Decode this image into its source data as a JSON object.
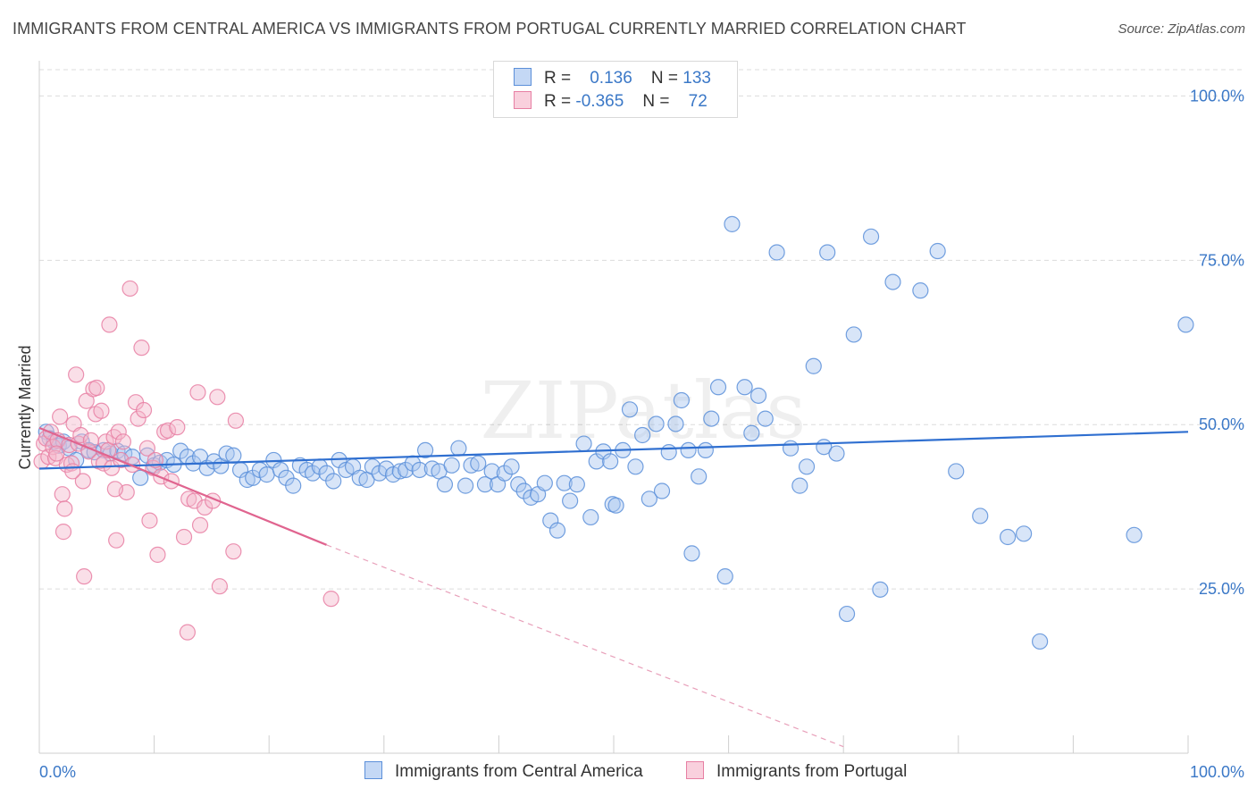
{
  "title": "IMMIGRANTS FROM CENTRAL AMERICA VS IMMIGRANTS FROM PORTUGAL CURRENTLY MARRIED CORRELATION CHART",
  "source": "Source: ZipAtlas.com",
  "watermark": "ZIPatlas",
  "legend": {
    "rows": [
      {
        "r_label": "R =",
        "r_value": "0.136",
        "n_label": "N =",
        "n_value": "133"
      },
      {
        "r_label": "R =",
        "r_value": "-0.365",
        "n_label": "N =",
        "n_value": "72"
      }
    ]
  },
  "chart_data": {
    "type": "scatter",
    "title": "IMMIGRANTS FROM CENTRAL AMERICA VS IMMIGRANTS FROM PORTUGAL CURRENTLY MARRIED CORRELATION CHART",
    "xlabel": "",
    "ylabel": "Currently Married",
    "xlim": [
      0,
      100
    ],
    "ylim": [
      0,
      104
    ],
    "x_tick_labels": [
      "0.0%",
      "100.0%"
    ],
    "y_tick_labels": [
      "25.0%",
      "50.0%",
      "75.0%",
      "100.0%"
    ],
    "y_ticks": [
      25,
      50,
      75,
      100
    ],
    "grid": true,
    "legend_position": "top-center",
    "series": [
      {
        "name": "Immigrants from Central America",
        "color": "#5b8fd9",
        "fill": "#a9c6f0",
        "trend": {
          "x0": 0,
          "y0": 43.3,
          "x1": 100,
          "y1": 48.9
        },
        "points": [
          [
            0.6,
            48.9
          ],
          [
            0.9,
            47.9
          ],
          [
            1.3,
            47.4
          ],
          [
            1.7,
            46.8
          ],
          [
            2.1,
            47.4
          ],
          [
            2.6,
            46.4
          ],
          [
            3.2,
            44.6
          ],
          [
            3.7,
            47.4
          ],
          [
            4.3,
            46.1
          ],
          [
            4.8,
            45.8
          ],
          [
            5.6,
            46.1
          ],
          [
            6.2,
            45.6
          ],
          [
            6.8,
            46.0
          ],
          [
            7.4,
            45.6
          ],
          [
            8.1,
            45.1
          ],
          [
            8.8,
            41.9
          ],
          [
            9.4,
            45.3
          ],
          [
            10.0,
            43.8
          ],
          [
            10.5,
            44.2
          ],
          [
            11.1,
            44.6
          ],
          [
            11.7,
            43.9
          ],
          [
            12.3,
            46.0
          ],
          [
            12.9,
            45.1
          ],
          [
            13.4,
            44.1
          ],
          [
            14.0,
            45.1
          ],
          [
            14.6,
            43.4
          ],
          [
            15.2,
            44.4
          ],
          [
            15.8,
            43.7
          ],
          [
            16.3,
            45.6
          ],
          [
            16.9,
            45.3
          ],
          [
            17.5,
            43.1
          ],
          [
            18.1,
            41.6
          ],
          [
            18.6,
            41.9
          ],
          [
            19.2,
            43.1
          ],
          [
            19.8,
            42.4
          ],
          [
            20.4,
            44.6
          ],
          [
            21.0,
            43.1
          ],
          [
            21.5,
            41.9
          ],
          [
            22.1,
            40.7
          ],
          [
            22.7,
            43.8
          ],
          [
            23.3,
            43.1
          ],
          [
            23.8,
            42.6
          ],
          [
            24.4,
            43.6
          ],
          [
            25.0,
            42.6
          ],
          [
            25.6,
            41.4
          ],
          [
            26.1,
            44.6
          ],
          [
            26.7,
            43.1
          ],
          [
            27.3,
            43.6
          ],
          [
            27.9,
            41.9
          ],
          [
            28.5,
            41.6
          ],
          [
            29.0,
            43.6
          ],
          [
            29.6,
            42.6
          ],
          [
            30.2,
            43.3
          ],
          [
            30.8,
            42.4
          ],
          [
            31.4,
            42.9
          ],
          [
            31.9,
            43.1
          ],
          [
            32.5,
            44.1
          ],
          [
            33.1,
            43.1
          ],
          [
            33.6,
            46.1
          ],
          [
            34.2,
            43.3
          ],
          [
            34.8,
            42.9
          ],
          [
            35.3,
            40.9
          ],
          [
            35.9,
            43.8
          ],
          [
            36.5,
            46.4
          ],
          [
            37.1,
            40.7
          ],
          [
            37.6,
            43.8
          ],
          [
            38.2,
            44.1
          ],
          [
            38.8,
            40.9
          ],
          [
            39.4,
            42.9
          ],
          [
            39.9,
            40.9
          ],
          [
            40.5,
            42.6
          ],
          [
            41.1,
            43.6
          ],
          [
            41.7,
            40.9
          ],
          [
            42.2,
            39.9
          ],
          [
            42.8,
            38.9
          ],
          [
            43.4,
            39.4
          ],
          [
            44.0,
            41.1
          ],
          [
            44.5,
            35.4
          ],
          [
            45.1,
            33.9
          ],
          [
            45.7,
            41.1
          ],
          [
            46.2,
            38.4
          ],
          [
            46.8,
            40.9
          ],
          [
            47.4,
            47.1
          ],
          [
            48.0,
            35.9
          ],
          [
            48.5,
            44.4
          ],
          [
            49.1,
            45.9
          ],
          [
            49.7,
            44.4
          ],
          [
            49.9,
            37.9
          ],
          [
            50.2,
            37.7
          ],
          [
            50.8,
            46.1
          ],
          [
            51.4,
            52.3
          ],
          [
            51.9,
            43.6
          ],
          [
            52.5,
            48.4
          ],
          [
            53.1,
            38.7
          ],
          [
            53.7,
            50.1
          ],
          [
            54.2,
            39.9
          ],
          [
            54.8,
            45.8
          ],
          [
            55.4,
            50.1
          ],
          [
            55.9,
            53.7
          ],
          [
            56.5,
            46.1
          ],
          [
            56.8,
            30.4
          ],
          [
            57.4,
            42.1
          ],
          [
            58.0,
            46.1
          ],
          [
            58.5,
            50.9
          ],
          [
            59.1,
            55.7
          ],
          [
            59.7,
            26.9
          ],
          [
            60.3,
            80.5
          ],
          [
            61.4,
            55.7
          ],
          [
            62.0,
            48.7
          ],
          [
            62.6,
            54.4
          ],
          [
            63.2,
            50.9
          ],
          [
            64.2,
            76.2
          ],
          [
            65.4,
            46.4
          ],
          [
            66.2,
            40.7
          ],
          [
            66.8,
            43.6
          ],
          [
            67.4,
            58.9
          ],
          [
            68.3,
            46.6
          ],
          [
            68.6,
            76.2
          ],
          [
            69.4,
            45.6
          ],
          [
            70.3,
            21.2
          ],
          [
            70.9,
            63.7
          ],
          [
            72.4,
            78.6
          ],
          [
            73.2,
            24.9
          ],
          [
            74.3,
            71.7
          ],
          [
            76.7,
            70.4
          ],
          [
            78.2,
            76.4
          ],
          [
            79.8,
            42.9
          ],
          [
            81.9,
            36.1
          ],
          [
            84.3,
            32.9
          ],
          [
            85.7,
            33.4
          ],
          [
            87.1,
            17.0
          ],
          [
            95.3,
            33.2
          ],
          [
            99.8,
            65.2
          ]
        ]
      },
      {
        "name": "Immigrants from Portugal",
        "color": "#e77fa3",
        "fill": "#f5b8cc",
        "trend": {
          "x0": 0,
          "y0": 49.5,
          "x1": 25,
          "y1": 31.7
        },
        "trend_dash": {
          "x0": 25,
          "y0": 31.7,
          "x1": 70,
          "y1": 1.0
        },
        "points": [
          [
            0.2,
            44.4
          ],
          [
            0.4,
            47.1
          ],
          [
            0.6,
            47.9
          ],
          [
            0.8,
            45.1
          ],
          [
            1.0,
            48.9
          ],
          [
            1.2,
            46.6
          ],
          [
            1.4,
            44.9
          ],
          [
            1.6,
            47.6
          ],
          [
            1.8,
            51.2
          ],
          [
            2.0,
            39.4
          ],
          [
            2.1,
            33.7
          ],
          [
            2.2,
            37.2
          ],
          [
            2.4,
            43.9
          ],
          [
            2.6,
            46.9
          ],
          [
            2.8,
            44.1
          ],
          [
            3.0,
            50.1
          ],
          [
            3.2,
            57.6
          ],
          [
            3.4,
            47.1
          ],
          [
            3.6,
            48.4
          ],
          [
            3.8,
            41.4
          ],
          [
            3.9,
            26.9
          ],
          [
            4.1,
            53.6
          ],
          [
            4.3,
            45.9
          ],
          [
            4.5,
            47.6
          ],
          [
            4.7,
            55.4
          ],
          [
            4.9,
            51.6
          ],
          [
            5.0,
            55.6
          ],
          [
            5.2,
            44.4
          ],
          [
            5.4,
            52.1
          ],
          [
            5.6,
            44.1
          ],
          [
            5.8,
            47.4
          ],
          [
            6.0,
            46.1
          ],
          [
            6.1,
            65.2
          ],
          [
            6.3,
            43.4
          ],
          [
            6.5,
            48.1
          ],
          [
            6.7,
            32.4
          ],
          [
            6.9,
            48.9
          ],
          [
            7.1,
            44.6
          ],
          [
            7.3,
            47.4
          ],
          [
            7.6,
            39.7
          ],
          [
            7.9,
            70.7
          ],
          [
            8.1,
            43.9
          ],
          [
            8.4,
            53.4
          ],
          [
            8.6,
            50.9
          ],
          [
            8.9,
            61.7
          ],
          [
            9.1,
            52.2
          ],
          [
            9.4,
            46.4
          ],
          [
            9.6,
            35.4
          ],
          [
            9.9,
            43.4
          ],
          [
            10.1,
            44.6
          ],
          [
            10.3,
            30.2
          ],
          [
            10.6,
            42.1
          ],
          [
            10.9,
            48.9
          ],
          [
            11.2,
            49.1
          ],
          [
            11.5,
            41.4
          ],
          [
            12.0,
            49.6
          ],
          [
            12.6,
            32.9
          ],
          [
            12.9,
            18.4
          ],
          [
            13.0,
            38.7
          ],
          [
            13.5,
            38.4
          ],
          [
            13.8,
            54.9
          ],
          [
            14.0,
            34.7
          ],
          [
            14.4,
            37.4
          ],
          [
            15.1,
            38.4
          ],
          [
            15.5,
            54.2
          ],
          [
            15.7,
            25.4
          ],
          [
            16.9,
            30.7
          ],
          [
            17.1,
            50.6
          ],
          [
            25.4,
            23.5
          ],
          [
            1.5,
            45.6
          ],
          [
            2.9,
            42.9
          ],
          [
            6.6,
            40.2
          ]
        ]
      }
    ]
  },
  "bottom_legend": {
    "items": [
      "Immigrants from Central America",
      "Immigrants from Portugal"
    ]
  }
}
